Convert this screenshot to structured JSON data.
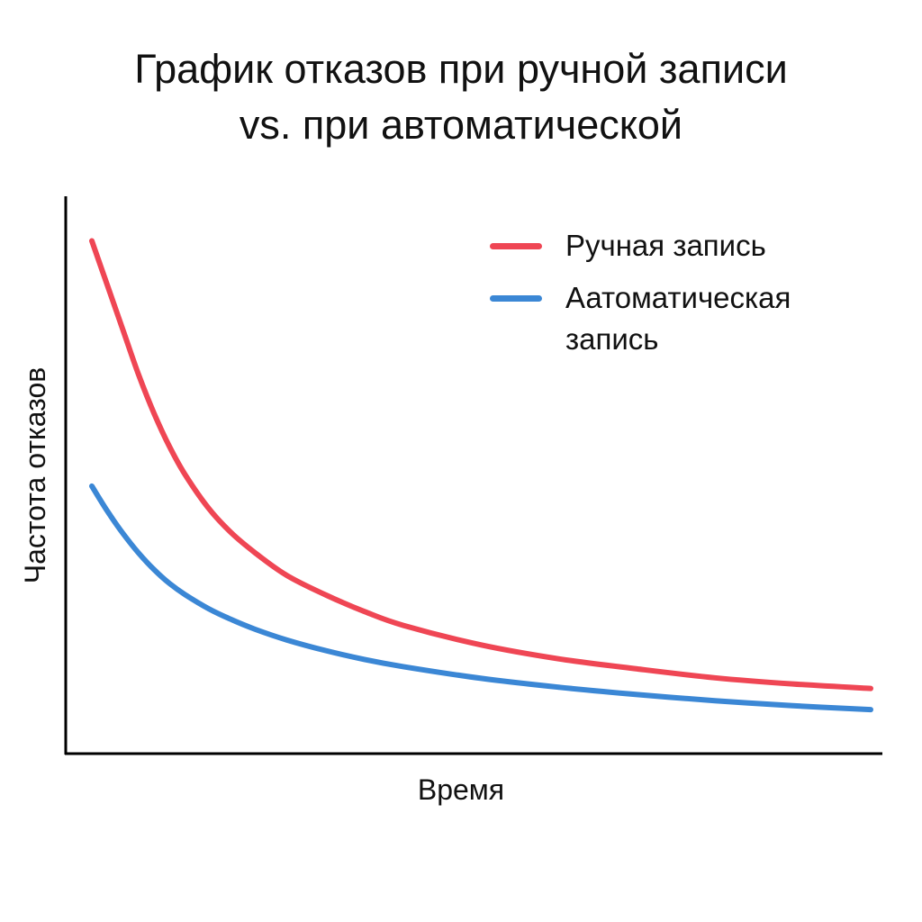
{
  "title_lines": [
    "График отказов при ручной записи",
    "vs. при автоматической"
  ],
  "chart_data": {
    "type": "line",
    "title": "График отказов при ручной записи vs. при автоматической",
    "xlabel": "Время",
    "ylabel": "Частота отказов",
    "x_ticks": false,
    "y_ticks": false,
    "grid": false,
    "legend_position": "top-right",
    "xlim": [
      0,
      100
    ],
    "ylim": [
      0,
      100
    ],
    "series": [
      {
        "name": "Ручная запись",
        "color": "#ef4654",
        "x": [
          0,
          2,
          4,
          6,
          8,
          10,
          12,
          15,
          18,
          21,
          25,
          30,
          35,
          40,
          50,
          60,
          70,
          80,
          90,
          100
        ],
        "y": [
          92,
          84,
          76,
          68,
          61,
          55,
          50,
          44,
          39.5,
          36,
          32,
          28.5,
          25.5,
          23,
          19.5,
          17,
          15.2,
          13.6,
          12.5,
          11.7
        ]
      },
      {
        "name": "Аатоматическая запись",
        "color": "#3b87d5",
        "x": [
          0,
          2,
          4,
          6,
          8,
          10,
          12,
          15,
          18,
          21,
          25,
          30,
          35,
          40,
          50,
          60,
          70,
          80,
          90,
          100
        ],
        "y": [
          48,
          43.5,
          39.5,
          36,
          33,
          30.5,
          28.5,
          26,
          24,
          22.3,
          20.4,
          18.5,
          16.9,
          15.6,
          13.5,
          11.9,
          10.6,
          9.5,
          8.6,
          7.9
        ]
      }
    ]
  }
}
